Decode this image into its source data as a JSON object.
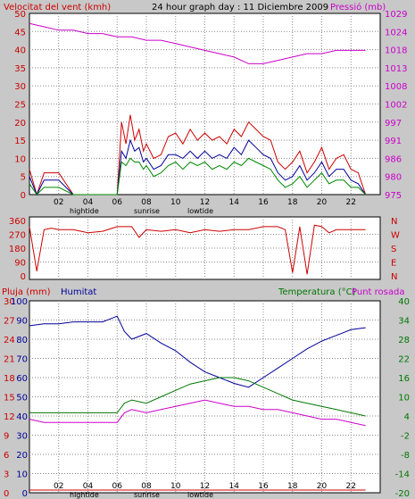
{
  "colors": {
    "wind": "#cc0000",
    "gust": "#000099",
    "direction": "#cc0000",
    "pressure": "#cc00cc",
    "rain": "#cc0000",
    "humidity": "#000099",
    "temperature": "#007700",
    "dewpoint": "#cc00cc",
    "green_series": "#008800",
    "grid": "#8a8a8a",
    "plot_bg": "#ffffff",
    "page_bg": "#c8c8c8"
  },
  "header": {
    "left_label": "Velocitat del vent (kmh)",
    "title": "24 hour graph day : 11 Diciembre 2009",
    "right_label": "Pressió (mb)"
  },
  "labels": {
    "hightide": "hightide",
    "sunrise": "sunrise",
    "lowtide": "lowtide",
    "rain": "Pluja (mm)",
    "humidity": "Humitat",
    "temperature": "Temperatura (°C)",
    "dewpoint": "Punt rosada"
  },
  "chart_data": [
    {
      "type": "line",
      "name": "wind_pressure",
      "x_ticks": [
        "02",
        "04",
        "06",
        "08",
        "10",
        "12",
        "14",
        "16",
        "18",
        "20",
        "22",
        ""
      ],
      "y_left_ticks": [
        "0",
        "5",
        "10",
        "15",
        "20",
        "25",
        "30",
        "35",
        "40",
        "45",
        "50"
      ],
      "y_right_ticks": [
        "975",
        "980",
        "986",
        "991",
        "997",
        "1002",
        "1008",
        "1013",
        "1018",
        "1024",
        "1029"
      ],
      "ylim_left": [
        0,
        50
      ],
      "ylim_right": [
        975,
        1029
      ],
      "series": [
        {
          "key": "wind",
          "x": [
            0,
            0.5,
            1,
            2,
            3,
            4,
            5,
            6,
            6.3,
            6.6,
            6.9,
            7.2,
            7.5,
            7.8,
            8,
            8.5,
            9,
            9.5,
            10,
            10.5,
            11,
            11.5,
            12,
            12.5,
            13,
            13.5,
            14,
            14.5,
            15,
            15.5,
            16,
            16.5,
            17,
            17.5,
            18,
            18.5,
            19,
            19.5,
            20,
            20.5,
            21,
            21.5,
            22,
            22.5,
            23
          ],
          "y": [
            7,
            0,
            6,
            6,
            0,
            0,
            0,
            0,
            20,
            14,
            22,
            15,
            18,
            12,
            14,
            10,
            11,
            16,
            17,
            14,
            18,
            15,
            17,
            15,
            16,
            14,
            18,
            16,
            20,
            18,
            16,
            15,
            9,
            7,
            9,
            12,
            6,
            9,
            13,
            7,
            10,
            11,
            7,
            6,
            0
          ]
        },
        {
          "key": "gust",
          "x": [
            0,
            0.5,
            1,
            2,
            3,
            4,
            5,
            6,
            6.3,
            6.6,
            6.9,
            7.2,
            7.5,
            7.8,
            8,
            8.5,
            9,
            9.5,
            10,
            10.5,
            11,
            11.5,
            12,
            12.5,
            13,
            13.5,
            14,
            14.5,
            15,
            15.5,
            16,
            16.5,
            17,
            17.5,
            18,
            18.5,
            19,
            19.5,
            20,
            20.5,
            21,
            21.5,
            22,
            22.5,
            23
          ],
          "y": [
            5,
            0,
            4,
            4,
            0,
            0,
            0,
            0,
            12,
            10,
            15,
            12,
            13,
            9,
            10,
            7,
            8,
            11,
            11,
            10,
            12,
            10,
            12,
            10,
            11,
            10,
            13,
            11,
            15,
            13,
            11,
            10,
            6,
            4,
            5,
            8,
            4,
            6,
            9,
            5,
            7,
            7,
            4,
            3,
            0
          ]
        },
        {
          "key": "green",
          "x": [
            0,
            0.5,
            1,
            2,
            3,
            4,
            5,
            6,
            6.3,
            6.6,
            6.9,
            7.2,
            7.5,
            7.8,
            8,
            8.5,
            9,
            9.5,
            10,
            10.5,
            11,
            11.5,
            12,
            12.5,
            13,
            13.5,
            14,
            14.5,
            15,
            15.5,
            16,
            16.5,
            17,
            17.5,
            18,
            18.5,
            19,
            19.5,
            20,
            20.5,
            21,
            21.5,
            22,
            22.5,
            23
          ],
          "y": [
            3,
            0,
            2,
            2,
            0,
            0,
            0,
            0,
            9,
            8,
            10,
            9,
            9,
            7,
            8,
            5,
            6,
            8,
            9,
            7,
            9,
            8,
            9,
            7,
            8,
            7,
            9,
            8,
            10,
            9,
            8,
            7,
            4,
            2,
            3,
            5,
            2,
            4,
            6,
            3,
            4,
            4,
            2,
            2,
            0
          ]
        },
        {
          "key": "pressure",
          "x": [
            0,
            1,
            2,
            3,
            4,
            5,
            6,
            7,
            8,
            9,
            10,
            11,
            12,
            13,
            14,
            15,
            16,
            17,
            18,
            19,
            20,
            21,
            22,
            23
          ],
          "y": [
            1026,
            1025,
            1024,
            1024,
            1023,
            1023,
            1022,
            1022,
            1021,
            1021,
            1020,
            1019,
            1018,
            1017,
            1016,
            1014,
            1014,
            1015,
            1016,
            1017,
            1017,
            1018,
            1018,
            1018
          ]
        }
      ]
    },
    {
      "type": "line",
      "name": "wind_direction",
      "y_left_ticks": [
        "360",
        "270",
        "180",
        "90",
        "0"
      ],
      "y_right_ticks": [
        "N",
        "W",
        "S",
        "E",
        "N"
      ],
      "ylim": [
        0,
        360
      ],
      "series": [
        {
          "key": "direction",
          "x": [
            0,
            0.5,
            1,
            1.5,
            2,
            3,
            4,
            5,
            6,
            7,
            7.5,
            8,
            9,
            10,
            11,
            12,
            13,
            14,
            15,
            16,
            17,
            17.5,
            18,
            18.5,
            19,
            19.5,
            20,
            20.5,
            21,
            22,
            23
          ],
          "y": [
            320,
            30,
            300,
            310,
            300,
            300,
            280,
            290,
            320,
            320,
            250,
            300,
            290,
            300,
            280,
            300,
            290,
            300,
            300,
            320,
            320,
            300,
            20,
            320,
            10,
            330,
            320,
            280,
            300,
            300,
            300
          ]
        }
      ]
    },
    {
      "type": "line",
      "name": "humidity_temperature",
      "x_ticks": [
        "02",
        "04",
        "06",
        "08",
        "10",
        "12",
        "14",
        "16",
        "18",
        "20",
        "22",
        ""
      ],
      "y_rain_ticks": [
        "0",
        "3",
        "6",
        "9",
        "12",
        "15",
        "18",
        "21",
        "24",
        "27",
        "30"
      ],
      "y_hum_ticks": [
        "0",
        "10",
        "20",
        "30",
        "40",
        "50",
        "60",
        "70",
        "80",
        "90",
        "100"
      ],
      "y_temp_ticks": [
        "-20",
        "-14",
        "-8",
        "-2",
        "4",
        "10",
        "16",
        "22",
        "28",
        "34",
        "40"
      ],
      "ylim_rain": [
        0,
        30
      ],
      "ylim_humidity": [
        0,
        100
      ],
      "ylim_temperature": [
        -20,
        40
      ],
      "series": [
        {
          "key": "rain",
          "x": [
            0,
            23
          ],
          "y": [
            0,
            0
          ]
        },
        {
          "key": "humidity",
          "x": [
            0,
            1,
            2,
            3,
            4,
            5,
            6,
            6.5,
            7,
            8,
            9,
            10,
            11,
            12,
            13,
            14,
            15,
            16,
            17,
            18,
            19,
            20,
            21,
            22,
            23
          ],
          "y": [
            87,
            88,
            88,
            89,
            89,
            89,
            92,
            84,
            80,
            83,
            78,
            74,
            68,
            63,
            60,
            57,
            55,
            60,
            65,
            70,
            75,
            79,
            82,
            85,
            86
          ]
        },
        {
          "key": "temperature",
          "x": [
            0,
            1,
            2,
            3,
            4,
            5,
            6,
            6.5,
            7,
            8,
            9,
            10,
            11,
            12,
            13,
            14,
            15,
            16,
            17,
            18,
            19,
            20,
            21,
            22,
            23
          ],
          "y": [
            5,
            5,
            5,
            5,
            5,
            5,
            5,
            8,
            9,
            8,
            10,
            12,
            14,
            15,
            16,
            16,
            15,
            13,
            11,
            9,
            8,
            7,
            6,
            5,
            4
          ]
        },
        {
          "key": "dewpoint",
          "x": [
            0,
            1,
            2,
            3,
            4,
            5,
            6,
            6.5,
            7,
            8,
            9,
            10,
            11,
            12,
            13,
            14,
            15,
            16,
            17,
            18,
            19,
            20,
            21,
            22,
            23
          ],
          "y": [
            3,
            2,
            2,
            2,
            2,
            2,
            2,
            5,
            6,
            5,
            6,
            7,
            8,
            9,
            8,
            7,
            7,
            6,
            6,
            5,
            4,
            3,
            3,
            2,
            1
          ]
        }
      ]
    }
  ]
}
